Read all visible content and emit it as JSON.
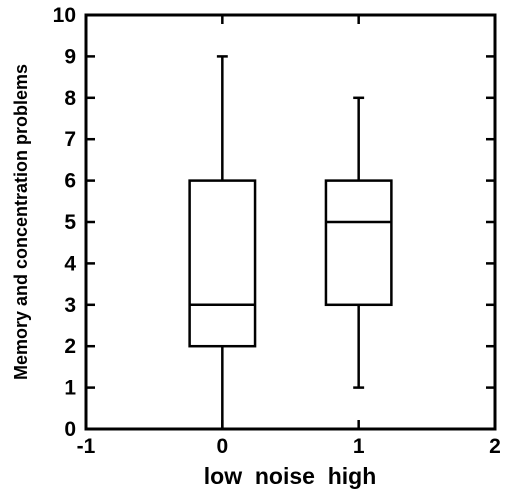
{
  "chart_data": {
    "type": "box",
    "xlabel": "low  noise  high",
    "ylabel": "Memory and concentration problems",
    "xlim": [
      -1,
      2
    ],
    "ylim": [
      0,
      10
    ],
    "x_ticks": [
      -1,
      0,
      1,
      2
    ],
    "y_ticks": [
      0,
      1,
      2,
      3,
      4,
      5,
      6,
      7,
      8,
      9,
      10
    ],
    "grid": false,
    "boxes": [
      {
        "x": 0,
        "min": 0,
        "q1": 2,
        "median": 3,
        "q3": 6,
        "max": 9
      },
      {
        "x": 1,
        "min": 1,
        "q1": 3,
        "median": 5,
        "q3": 6,
        "max": 8
      }
    ]
  }
}
